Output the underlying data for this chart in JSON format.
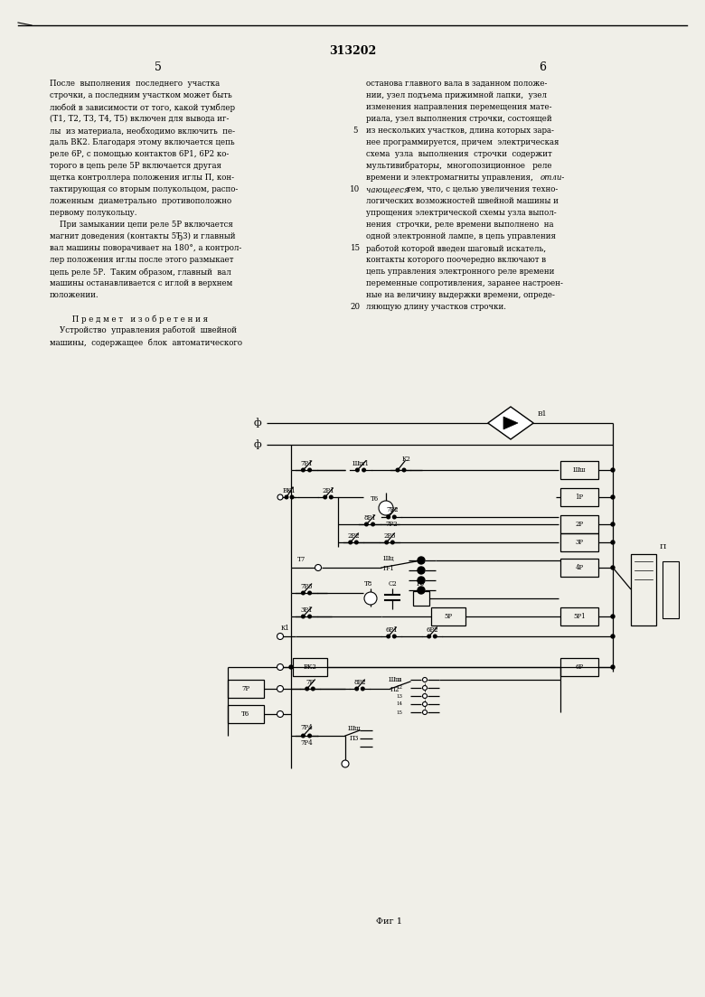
{
  "page_width": 7.8,
  "page_height": 11.03,
  "dpi": 100,
  "bg_color": "#f0efe8",
  "patent_number": "313202",
  "page_numbers": [
    "5",
    "6"
  ],
  "fig_label": "Фиг 1",
  "left_text_lines": [
    "После  выполнения  последнего  участка",
    "строчки, а последним участком может быть",
    "любой в зависимости от того, какой тумблер",
    "(Т1, Т2, Т3, Т4, Т5) включен для вывода иг-",
    "лы  из материала, необходимо включить  пе-",
    "даль ВК2. Благодаря этому включается цепь",
    "реле 6Р, с помощью контактов 6Р1, 6Р2 ко-",
    "торого в цепь реле 5Р включается другая",
    "щетка контроллера положения иглы П, кон-",
    "тактирующая со вторым полукольцом, распо-",
    "ложенным  диаметрально  противоположно",
    "первому полукольцу.",
    "    При замыкании цепи реле 5Р включается",
    "магнит доведения (контакты 5Ђ3) и главный",
    "вал машины поворачивает на 180°, а контрол-",
    "лер положения иглы после этого размыкает",
    "цепь реле 5Р.  Таким образом, главный  вал",
    "машины останавливается с иглой в верхнем",
    "положении.",
    "",
    "         П р е д м е т   и з о б р е т е н и я",
    "    Устройство  управления работой  швейной",
    "машины,  содержащее  блок  автоматического"
  ],
  "right_text_lines": [
    "останова главного вала в заданном положе-",
    "нии, узел подъема прижимной лапки,  узел",
    "изменения направления перемещения мате-",
    "риала, узел выполнения строчки, состоящей",
    "из нескольких участков, длина которых зара-",
    "нее программируется, причем  электрическая",
    "схема  узла  выполнения  строчки  содержит",
    "мультивибраторы,  многопозиционное   реле",
    "времени и электромагниты управления, ",
    "чающееся тем, что, с целью увеличения техно-",
    "логических возможностей швейной машины и",
    "упрощения электрической схемы узла выпол-",
    "нения  строчки, реле времени выполнено  на",
    "одной электронной лампе, в цепь управления",
    "работой которой введен шаговый искатель,",
    "контакты которого поочередно включают в",
    "цепь управления электронного реле времени",
    "переменные сопротивления, заранее настроен-",
    "ные на величину выдержки времени, опреде-",
    "ляющую длину участков строчки."
  ]
}
